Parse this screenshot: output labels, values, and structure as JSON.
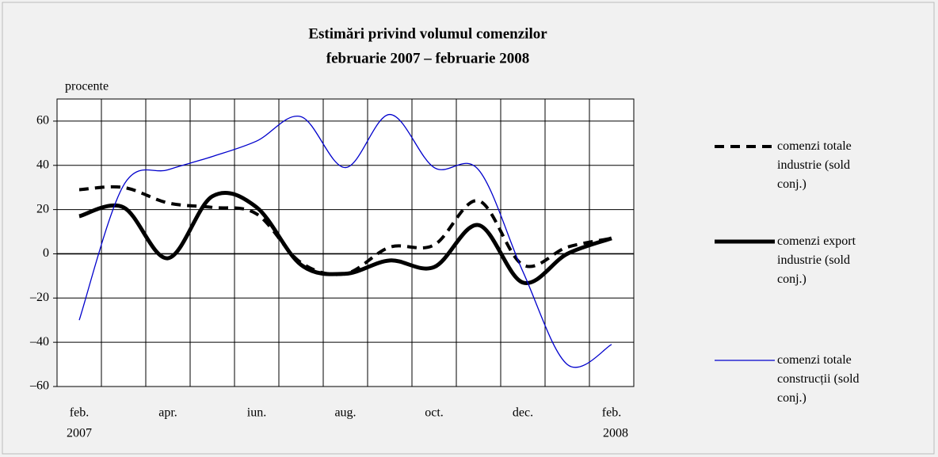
{
  "chart_data": {
    "type": "line",
    "title": "Estimări privind volumul comenzilor",
    "subtitle": "februarie 2007 – februarie 2008",
    "y_axis_label": "procente",
    "categories": [
      "feb.",
      null,
      "apr.",
      null,
      "iun.",
      null,
      "aug.",
      null,
      "oct.",
      null,
      "dec.",
      null,
      "feb."
    ],
    "start_year_label": "2007",
    "end_year_label": "2008",
    "series": [
      {
        "name": "comenzi totale industrie (sold conj.)",
        "color": "#000000",
        "style": "dashed",
        "values": [
          29,
          30,
          23,
          21,
          18,
          -4,
          -9,
          3,
          4,
          24,
          -5,
          3,
          7
        ]
      },
      {
        "name": "comenzi export industrie (sold conj.)",
        "color": "#000000",
        "style": "thick",
        "values": [
          17,
          21,
          -2,
          26,
          21,
          -5,
          -9,
          -3,
          -6,
          13,
          -13,
          0,
          7
        ]
      },
      {
        "name": "comenzi totale construcții (sold conj.)",
        "color": "#0000cc",
        "style": "thin",
        "values": [
          -30,
          31,
          38,
          44,
          51,
          62,
          39,
          63,
          39,
          38,
          -8,
          -50,
          -41
        ]
      }
    ],
    "ylim": [
      -60,
      70
    ],
    "yticks": [
      {
        "value": -60,
        "label": "–60"
      },
      {
        "value": -40,
        "label": "–40"
      },
      {
        "value": -20,
        "label": "–20"
      },
      0,
      20,
      40,
      60
    ],
    "grid": true,
    "legend": "right"
  }
}
